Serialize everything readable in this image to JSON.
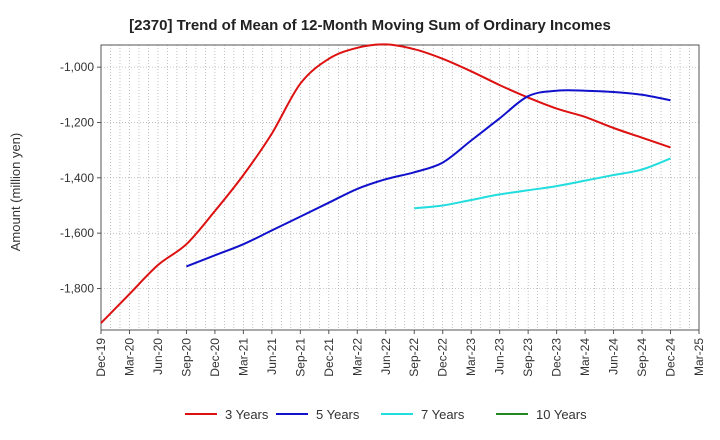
{
  "chart_data": {
    "type": "line",
    "title": "[2370]  Trend of Mean of 12-Month Moving Sum of Ordinary Incomes",
    "xlabel": "",
    "ylabel": "Amount (million yen)",
    "ylim": [
      -1950,
      -920
    ],
    "yticks": [
      -1800,
      -1600,
      -1400,
      -1200,
      -1000
    ],
    "ytick_labels": [
      "-1,800",
      "-1,600",
      "-1,400",
      "-1,200",
      "-1,000"
    ],
    "xtick_labels": [
      "Dec-19",
      "Mar-20",
      "Jun-20",
      "Sep-20",
      "Dec-20",
      "Mar-21",
      "Jun-21",
      "Sep-21",
      "Dec-21",
      "Mar-22",
      "Jun-22",
      "Sep-22",
      "Dec-22",
      "Mar-23",
      "Jun-23",
      "Sep-23",
      "Dec-23",
      "Mar-24",
      "Jun-24",
      "Sep-24",
      "Dec-24",
      "Mar-25"
    ],
    "grid": true,
    "legend_position": "bottom",
    "series": [
      {
        "name": "3 Years",
        "color": "#dd1111",
        "x": [
          "Dec-19",
          "Mar-20",
          "Jun-20",
          "Sep-20",
          "Dec-20",
          "Mar-21",
          "Jun-21",
          "Sep-21",
          "Dec-21",
          "Mar-22",
          "Jun-22",
          "Sep-22",
          "Dec-22",
          "Mar-23",
          "Jun-23",
          "Sep-23",
          "Dec-23",
          "Mar-24",
          "Jun-24",
          "Sep-24",
          "Dec-24"
        ],
        "values": [
          -1925,
          -1820,
          -1715,
          -1640,
          -1520,
          -1390,
          -1240,
          -1060,
          -970,
          -930,
          -918,
          -935,
          -970,
          -1015,
          -1065,
          -1110,
          -1150,
          -1180,
          -1220,
          -1255,
          -1290
        ]
      },
      {
        "name": "5 Years",
        "color": "#1111cc",
        "x": [
          "Sep-20",
          "Dec-20",
          "Mar-21",
          "Jun-21",
          "Sep-21",
          "Dec-21",
          "Mar-22",
          "Jun-22",
          "Sep-22",
          "Dec-22",
          "Mar-23",
          "Jun-23",
          "Sep-23",
          "Dec-23",
          "Mar-24",
          "Jun-24",
          "Sep-24",
          "Dec-24"
        ],
        "values": [
          -1720,
          -1680,
          -1640,
          -1590,
          -1540,
          -1490,
          -1440,
          -1405,
          -1380,
          -1345,
          -1265,
          -1185,
          -1105,
          -1085,
          -1085,
          -1090,
          -1100,
          -1120
        ]
      },
      {
        "name": "7 Years",
        "color": "#22dddd",
        "x": [
          "Sep-22",
          "Dec-22",
          "Mar-23",
          "Jun-23",
          "Sep-23",
          "Dec-23",
          "Mar-24",
          "Jun-24",
          "Sep-24",
          "Dec-24"
        ],
        "values": [
          -1510,
          -1500,
          -1480,
          -1460,
          -1445,
          -1430,
          -1410,
          -1390,
          -1370,
          -1330
        ]
      },
      {
        "name": "10 Years",
        "color": "#228822",
        "x": [],
        "values": []
      }
    ]
  }
}
